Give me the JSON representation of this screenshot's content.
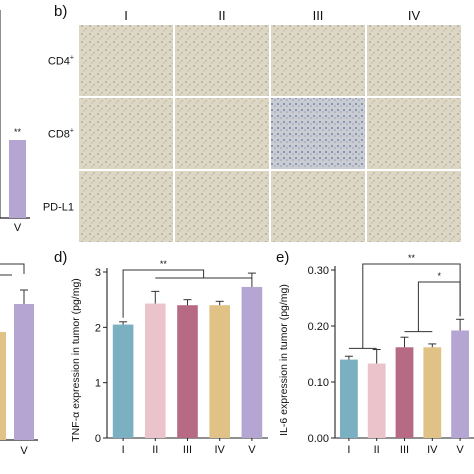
{
  "panel_b": {
    "letter": "b)",
    "columns": [
      "I",
      "II",
      "III",
      "IV"
    ],
    "rows": [
      {
        "label": "CD4",
        "sup": "+"
      },
      {
        "label": "CD8",
        "sup": "+"
      },
      {
        "label": "PD-L1",
        "sup": ""
      }
    ]
  },
  "panel_a_partial": {
    "sig": "**",
    "x_label": "V",
    "bar_color": "#b4a5d3"
  },
  "panel_c_partial": {
    "x_label": "V",
    "bar_colors": [
      "#e1c286",
      "#b4a5d3"
    ]
  },
  "chart_data": [
    {
      "type": "bar",
      "panel": "d)",
      "ylabel": "TNF-α expression in tumor (pg/mg)",
      "categories": [
        "I",
        "II",
        "III",
        "IV",
        "V"
      ],
      "values": [
        2.05,
        2.43,
        2.4,
        2.4,
        2.73
      ],
      "errors": [
        0.05,
        0.22,
        0.1,
        0.07,
        0.25
      ],
      "colors": [
        "#7ab0c1",
        "#ebc3cb",
        "#b76a83",
        "#e1c286",
        "#b4a5d3"
      ],
      "ylim": [
        0,
        3
      ],
      "yticks": [
        "0",
        "1",
        "2",
        "3"
      ],
      "significance": [
        {
          "from": "I",
          "to": "II–V",
          "label": "**"
        }
      ]
    },
    {
      "type": "bar",
      "panel": "e)",
      "ylabel": "IL-6 expression in tumor (pg/mg)",
      "categories": [
        "I",
        "II",
        "III",
        "IV",
        "V"
      ],
      "values": [
        0.14,
        0.133,
        0.162,
        0.162,
        0.192
      ],
      "errors": [
        0.006,
        0.025,
        0.018,
        0.006,
        0.02
      ],
      "colors": [
        "#7ab0c1",
        "#ebc3cb",
        "#b76a83",
        "#e1c286",
        "#b4a5d3"
      ],
      "ylim": [
        0,
        0.3
      ],
      "yticks": [
        "0.00",
        "0.10",
        "0.20",
        "0.30"
      ],
      "significance": [
        {
          "from": "I–II",
          "to": "V",
          "label": "**"
        },
        {
          "from": "III–IV",
          "to": "V",
          "label": "*"
        }
      ]
    }
  ]
}
